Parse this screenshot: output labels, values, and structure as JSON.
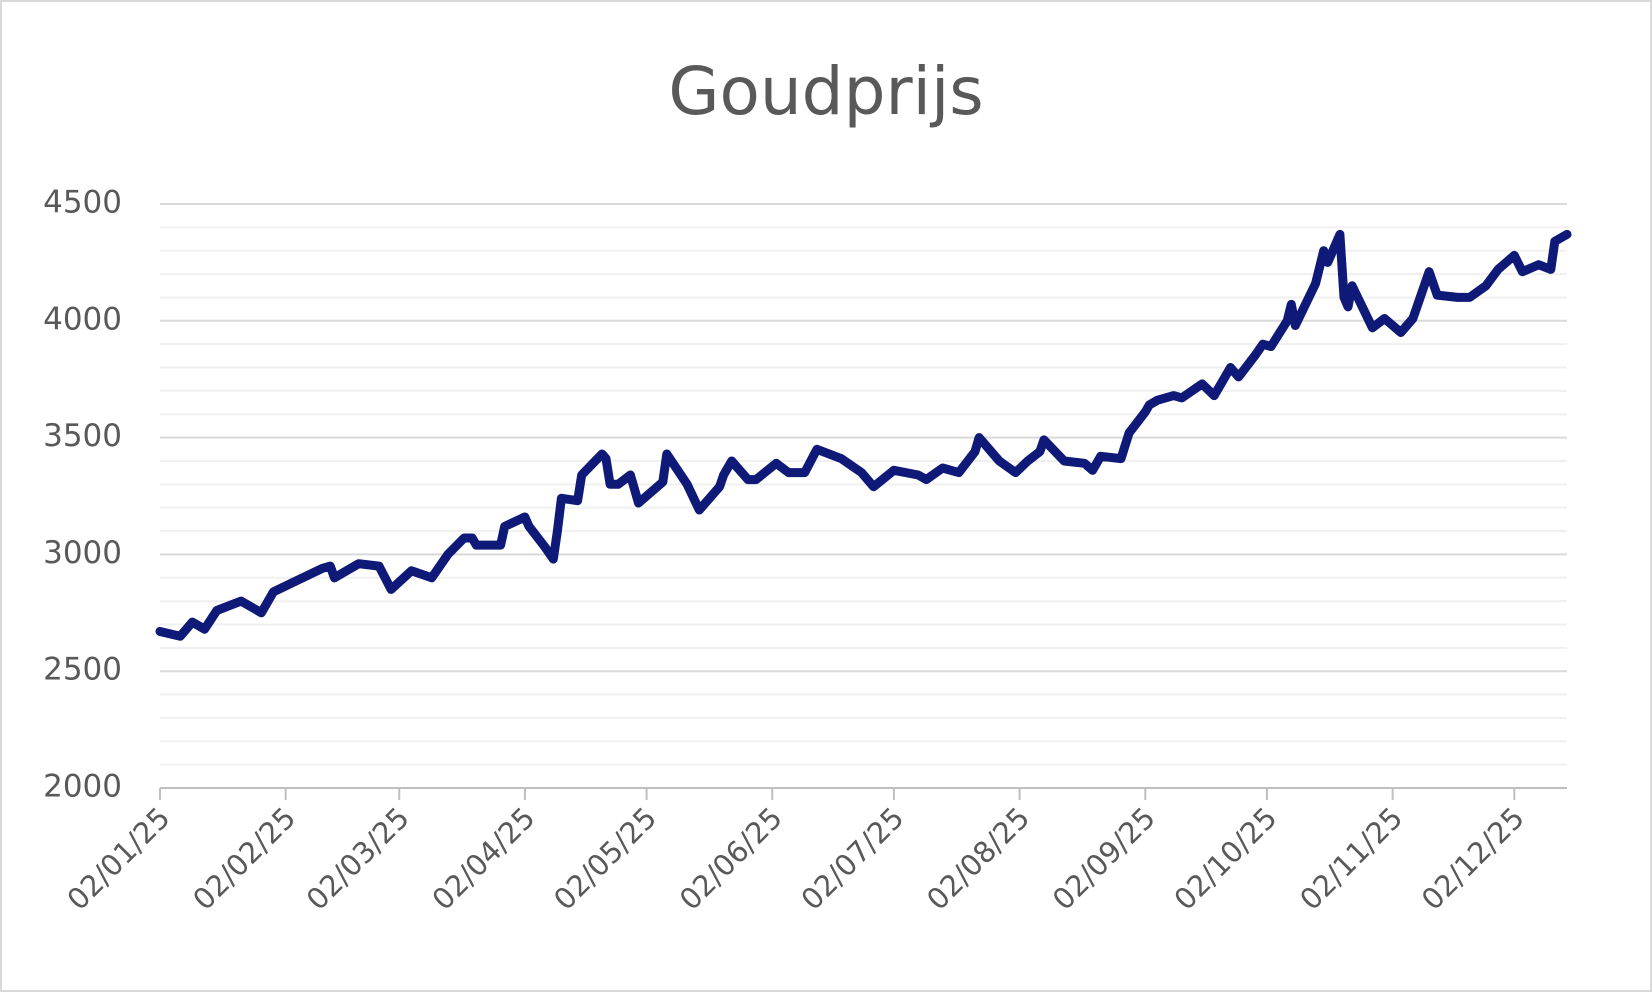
{
  "chart_data": {
    "type": "line",
    "title": "Goudprijs",
    "x": [
      "02/01/25",
      "07/01/25",
      "10/01/25",
      "13/01/25",
      "16/01/25",
      "22/01/25",
      "27/01/25",
      "30/01/25",
      "05/02/25",
      "11/02/25",
      "13/02/25",
      "14/02/25",
      "20/02/25",
      "25/02/25",
      "28/02/25",
      "05/03/25",
      "10/03/25",
      "14/03/25",
      "18/03/25",
      "20/03/25",
      "21/03/25",
      "27/03/25",
      "28/03/25",
      "02/04/25",
      "03/04/25",
      "07/04/25",
      "09/04/25",
      "10/04/25",
      "11/04/25",
      "15/04/25",
      "16/04/25",
      "21/04/25",
      "22/04/25",
      "23/04/25",
      "25/04/25",
      "28/04/25",
      "30/04/25",
      "06/05/25",
      "07/05/25",
      "12/05/25",
      "15/05/25",
      "20/05/25",
      "21/05/25",
      "23/05/25",
      "27/05/25",
      "29/05/25",
      "03/06/25",
      "06/06/25",
      "10/06/25",
      "13/06/25",
      "19/06/25",
      "24/06/25",
      "27/06/25",
      "02/07/25",
      "08/07/25",
      "10/07/25",
      "14/07/25",
      "18/07/25",
      "22/07/25",
      "23/07/25",
      "28/07/25",
      "01/08/25",
      "04/08/25",
      "07/08/25",
      "08/08/25",
      "13/08/25",
      "18/08/25",
      "20/08/25",
      "22/08/25",
      "27/08/25",
      "29/08/25",
      "02/09/25",
      "03/09/25",
      "05/09/25",
      "09/09/25",
      "11/09/25",
      "16/09/25",
      "19/09/25",
      "23/09/25",
      "25/09/25",
      "29/09/25",
      "01/10/25",
      "03/10/25",
      "07/10/25",
      "08/10/25",
      "09/10/25",
      "14/10/25",
      "16/10/25",
      "17/10/25",
      "20/10/25",
      "21/10/25",
      "22/10/25",
      "23/10/25",
      "28/10/25",
      "31/10/25",
      "04/11/25",
      "07/11/25",
      "11/11/25",
      "13/11/25",
      "18/11/25",
      "21/11/25",
      "25/11/25",
      "28/11/25",
      "02/12/25",
      "04/12/25",
      "08/12/25",
      "11/12/25",
      "12/12/25",
      "15/12/25"
    ],
    "series": [
      {
        "name": "Goudprijs",
        "color": "#0f1a78",
        "values": [
          2670,
          2650,
          2710,
          2680,
          2760,
          2800,
          2750,
          2840,
          2890,
          2940,
          2950,
          2900,
          2960,
          2950,
          2850,
          2930,
          2900,
          3000,
          3070,
          3070,
          3040,
          3040,
          3120,
          3160,
          3120,
          3030,
          2980,
          3100,
          3240,
          3230,
          3340,
          3430,
          3410,
          3300,
          3300,
          3340,
          3220,
          3310,
          3430,
          3300,
          3190,
          3290,
          3340,
          3400,
          3320,
          3320,
          3390,
          3350,
          3350,
          3450,
          3410,
          3350,
          3290,
          3360,
          3340,
          3320,
          3370,
          3350,
          3440,
          3500,
          3400,
          3350,
          3400,
          3440,
          3490,
          3400,
          3390,
          3360,
          3420,
          3410,
          3520,
          3610,
          3640,
          3660,
          3680,
          3670,
          3730,
          3680,
          3800,
          3760,
          3850,
          3900,
          3890,
          4000,
          4070,
          3980,
          4160,
          4300,
          4250,
          4370,
          4100,
          4060,
          4150,
          3970,
          4010,
          3950,
          4010,
          4210,
          4110,
          4100,
          4100,
          4150,
          4220,
          4280,
          4210,
          4240,
          4220,
          4340,
          4370
        ]
      }
    ],
    "xlim": [
      "02/01/25",
      "15/12/25"
    ],
    "xticks": [
      "02/01/25",
      "02/02/25",
      "02/03/25",
      "02/04/25",
      "02/05/25",
      "02/06/25",
      "02/07/25",
      "02/08/25",
      "02/09/25",
      "02/10/25",
      "02/11/25",
      "02/12/25"
    ],
    "ylim": [
      2000,
      4500
    ],
    "yticks": [
      2000,
      2500,
      3000,
      3500,
      4000,
      4500
    ],
    "grid": true,
    "minor_grid": true,
    "legend": false
  }
}
